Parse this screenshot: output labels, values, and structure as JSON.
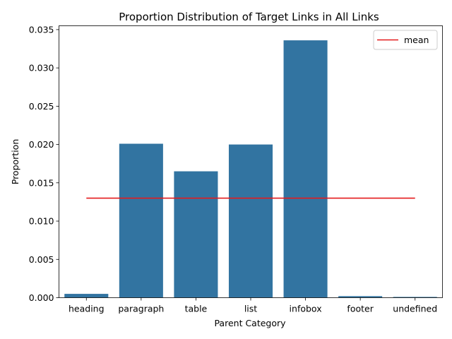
{
  "chart_data": {
    "type": "bar",
    "title": "Proportion Distribution of Target Links in All Links",
    "xlabel": "Parent Category",
    "ylabel": "Proportion",
    "categories": [
      "heading",
      "paragraph",
      "table",
      "list",
      "infobox",
      "footer",
      "undefined"
    ],
    "values": [
      0.0005,
      0.0201,
      0.0165,
      0.02,
      0.0336,
      0.0002,
      0.0001
    ],
    "ylim": [
      0,
      0.0355
    ],
    "yticks": [
      0.0,
      0.005,
      0.01,
      0.015,
      0.02,
      0.025,
      0.03,
      0.035
    ],
    "ytick_labels": [
      "0.000",
      "0.005",
      "0.010",
      "0.015",
      "0.020",
      "0.025",
      "0.030",
      "0.035"
    ],
    "mean": 0.013,
    "legend": {
      "position": "top-right",
      "entries": [
        {
          "label": "mean",
          "color": "#e41a1c"
        }
      ]
    },
    "bar_color": "#3274a1",
    "mean_color": "#e41a1c",
    "grid": false
  }
}
